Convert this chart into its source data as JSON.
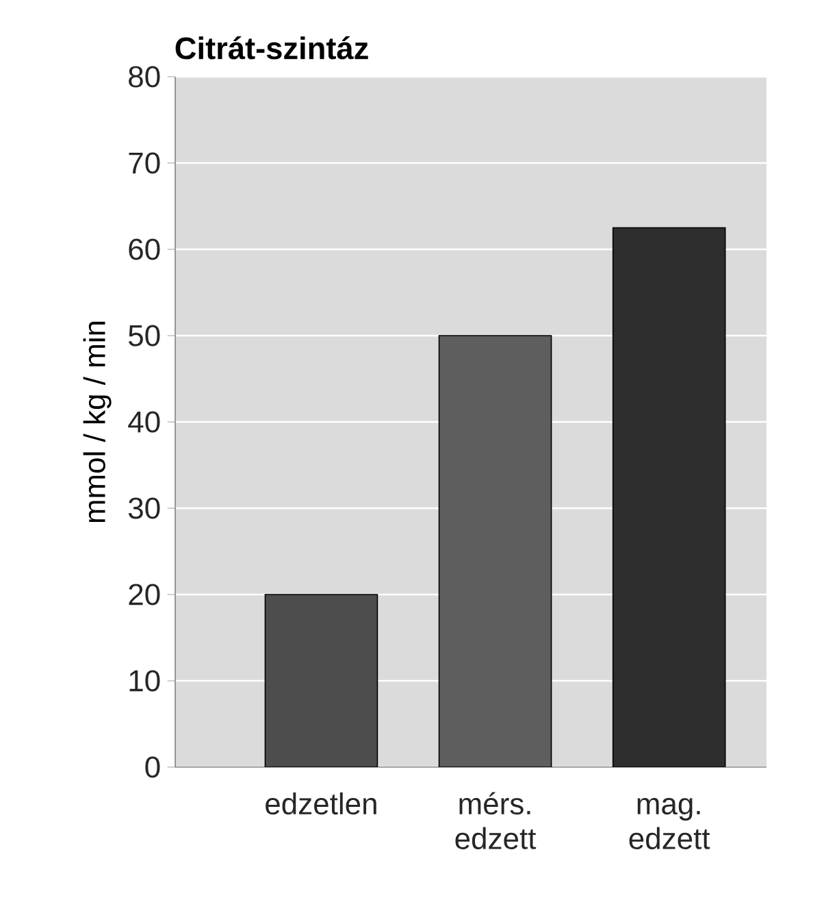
{
  "chart_data": {
    "type": "bar",
    "title": "Citrát-szintáz",
    "ylabel": "mmol / kg / min",
    "categories": [
      "edzetlen",
      "mérs. edzett",
      "mag. edzett"
    ],
    "values": [
      20,
      50,
      62.5
    ],
    "colors": [
      "#4d4d4d",
      "#5e5e5e",
      "#2e2e2e"
    ],
    "ylim": [
      0,
      80
    ],
    "yticks": [
      0,
      10,
      20,
      30,
      40,
      50,
      60,
      70,
      80
    ],
    "grid": "y"
  }
}
